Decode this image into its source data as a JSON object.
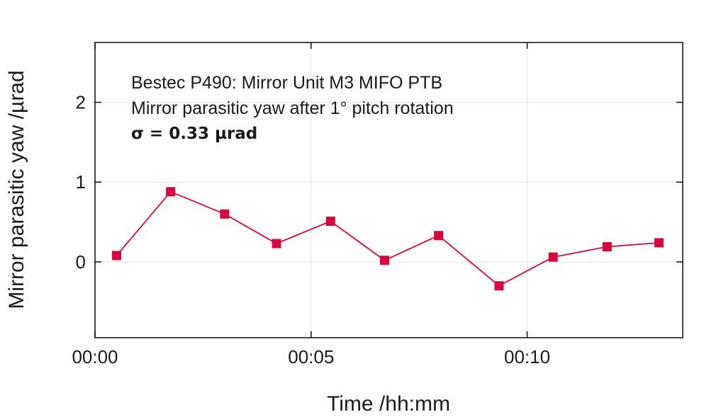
{
  "chart_data": {
    "type": "line",
    "xlabel": "Time /hh:mm",
    "ylabel": "Mirror parasitic yaw /µrad",
    "xlim": [
      0,
      13.6
    ],
    "ylim": [
      -0.95,
      2.75
    ],
    "x_tick_values": [
      0,
      5,
      10
    ],
    "x_tick_labels": [
      "00:00",
      "00:05",
      "00:10"
    ],
    "y_tick_values": [
      0,
      1,
      2
    ],
    "y_tick_labels": [
      "0",
      "1",
      "2"
    ],
    "grid": true,
    "annotations": [
      "Bestec P490: Mirror Unit M3 MIFO PTB",
      "Mirror parasitic yaw after 1° pitch rotation",
      "σ = 0.33 µrad"
    ],
    "series": [
      {
        "color": "#d7063f",
        "marker": "square",
        "x": [
          0.5,
          1.75,
          3.0,
          4.2,
          5.45,
          6.7,
          7.95,
          9.35,
          10.6,
          11.85,
          13.05
        ],
        "y": [
          0.08,
          0.88,
          0.6,
          0.23,
          0.51,
          0.02,
          0.33,
          -0.3,
          0.06,
          0.19,
          0.24
        ]
      }
    ]
  }
}
